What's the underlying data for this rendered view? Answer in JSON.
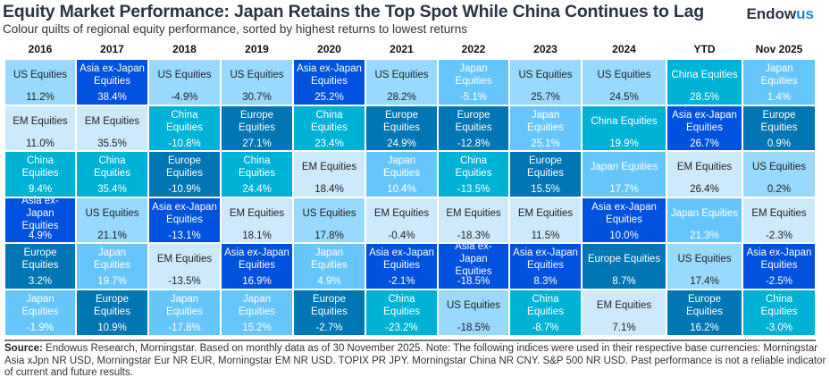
{
  "header": {
    "title": "Equity Market Performance: Japan Retains the Top Spot While China Continues to Lag",
    "subtitle": "Colour quilts of regional equity performance, sorted by highest returns to lowest returns",
    "logo_text": "Endowus"
  },
  "colors": {
    "US Equities": {
      "bg": "#99d9fd",
      "fg": "#222222"
    },
    "EM Equities": {
      "bg": "#cdeafd",
      "fg": "#222222"
    },
    "Japan Equities": {
      "bg": "#66c6fb",
      "fg": "#ffffff"
    },
    "China Equities": {
      "bg": "#00b3d6",
      "fg": "#ffffff"
    },
    "Europe Equities": {
      "bg": "#0076b4",
      "fg": "#ffffff"
    },
    "Asia ex-Japan Equities": {
      "bg": "#0051dd",
      "fg": "#ffffff"
    }
  },
  "chart_data": {
    "type": "table",
    "title": "Equity Market Performance: Japan Retains the Top Spot While China Continues to Lag",
    "subtitle": "Colour quilts of regional equity performance, sorted by highest returns to lowest returns",
    "columns": [
      {
        "label": "2016",
        "cells": [
          {
            "asset": "US Equities",
            "value": "11.2%"
          },
          {
            "asset": "EM Equities",
            "value": "11.0%"
          },
          {
            "asset": "China Equities",
            "value": "9.4%"
          },
          {
            "asset": "Asia ex-Japan Equities",
            "value": "4.9%"
          },
          {
            "asset": "Europe Equities",
            "value": "3.2%"
          },
          {
            "asset": "Japan Equities",
            "value": "-1.9%"
          }
        ]
      },
      {
        "label": "2017",
        "cells": [
          {
            "asset": "Asia ex-Japan Equities",
            "value": "38.4%"
          },
          {
            "asset": "EM Equities",
            "value": "35.5%"
          },
          {
            "asset": "China Equities",
            "value": "35.4%"
          },
          {
            "asset": "US Equities",
            "value": "21.1%"
          },
          {
            "asset": "Japan Equities",
            "value": "19.7%"
          },
          {
            "asset": "Europe Equities",
            "value": "10.9%"
          }
        ]
      },
      {
        "label": "2018",
        "cells": [
          {
            "asset": "US Equities",
            "value": "-4.9%"
          },
          {
            "asset": "China Equities",
            "value": "-10.8%"
          },
          {
            "asset": "Europe Equities",
            "value": "-10.9%"
          },
          {
            "asset": "Asia ex-Japan Equities",
            "value": "-13.1%"
          },
          {
            "asset": "EM Equities",
            "value": "-13.5%"
          },
          {
            "asset": "Japan Equities",
            "value": "-17.8%"
          }
        ]
      },
      {
        "label": "2019",
        "cells": [
          {
            "asset": "US Equities",
            "value": "30.7%"
          },
          {
            "asset": "Europe Equities",
            "value": "27.1%"
          },
          {
            "asset": "China Equities",
            "value": "24.4%"
          },
          {
            "asset": "EM Equities",
            "value": "18.1%"
          },
          {
            "asset": "Asia ex-Japan Equities",
            "value": "16.9%"
          },
          {
            "asset": "Japan Equities",
            "value": "15.2%"
          }
        ]
      },
      {
        "label": "2020",
        "cells": [
          {
            "asset": "Asia ex-Japan Equities",
            "value": "25.2%"
          },
          {
            "asset": "China Equities",
            "value": "23.4%"
          },
          {
            "asset": "EM Equities",
            "value": "18.4%"
          },
          {
            "asset": "US Equities",
            "value": "17.8%"
          },
          {
            "asset": "Japan Equities",
            "value": "4.9%"
          },
          {
            "asset": "Europe Equities",
            "value": "-2.7%"
          }
        ]
      },
      {
        "label": "2021",
        "cells": [
          {
            "asset": "US Equities",
            "value": "28.2%"
          },
          {
            "asset": "Europe Equities",
            "value": "24.9%"
          },
          {
            "asset": "Japan Equities",
            "value": "10.4%"
          },
          {
            "asset": "EM Equities",
            "value": "-0.4%"
          },
          {
            "asset": "Asia ex-Japan Equities",
            "value": "-2.1%"
          },
          {
            "asset": "China Equities",
            "value": "-23.2%"
          }
        ]
      },
      {
        "label": "2022",
        "cells": [
          {
            "asset": "Japan Equities",
            "value": "-5.1%"
          },
          {
            "asset": "Europe Equities",
            "value": "-12.8%"
          },
          {
            "asset": "China Equities",
            "value": "-13.5%"
          },
          {
            "asset": "EM Equities",
            "value": "-18.3%"
          },
          {
            "asset": "Asia ex-Japan Equities",
            "value": "-18.5%"
          },
          {
            "asset": "US Equities",
            "value": "-18.5%"
          }
        ]
      },
      {
        "label": "2023",
        "cells": [
          {
            "asset": "US Equities",
            "value": "25.7%"
          },
          {
            "asset": "Japan Equities",
            "value": "25.1%"
          },
          {
            "asset": "Europe Equities",
            "value": "15.5%"
          },
          {
            "asset": "EM Equities",
            "value": "11.5%"
          },
          {
            "asset": "Asia ex-Japan Equities",
            "value": "8.3%"
          },
          {
            "asset": "China Equities",
            "value": "-8.7%"
          }
        ]
      },
      {
        "label": "2024",
        "cells": [
          {
            "asset": "US Equities",
            "value": "24.5%"
          },
          {
            "asset": "China Equities",
            "value": "19.9%"
          },
          {
            "asset": "Japan Equities",
            "value": "17.7%"
          },
          {
            "asset": "Asia ex-Japan Equities",
            "value": "10.0%"
          },
          {
            "asset": "Europe Equities",
            "value": "8.7%"
          },
          {
            "asset": "EM Equities",
            "value": "7.1%"
          }
        ]
      },
      {
        "label": "YTD",
        "cells": [
          {
            "asset": "China Equities",
            "value": "28.5%"
          },
          {
            "asset": "Asia ex-Japan Equities",
            "value": "26.7%"
          },
          {
            "asset": "EM Equities",
            "value": "26.4%"
          },
          {
            "asset": "Japan Equities",
            "value": "21.3%"
          },
          {
            "asset": "US Equities",
            "value": "17.4%"
          },
          {
            "asset": "Europe Equities",
            "value": "16.2%"
          }
        ]
      },
      {
        "label": "Nov 2025",
        "cells": [
          {
            "asset": "Japan Equities",
            "value": "1.4%"
          },
          {
            "asset": "Europe Equities",
            "value": "0.9%"
          },
          {
            "asset": "US Equities",
            "value": "0.2%"
          },
          {
            "asset": "EM Equities",
            "value": "-2.3%"
          },
          {
            "asset": "Asia ex-Japan Equities",
            "value": "-2.5%"
          },
          {
            "asset": "China Equities",
            "value": "-3.0%"
          }
        ]
      }
    ]
  },
  "footer": {
    "source_label": "Source:",
    "source_text": " Endowus Research, Morningstar. Based on monthly data as of 30 November 2025. Note: The following indices were used in their respective base currencies: Morningstar Asia xJpn NR USD, Morningstar Eur NR EUR, Morningstar EM NR USD. TOPIX PR JPY. Morningstar China NR CNY. S&P 500 NR USD. Past performance is not a reliable indicator of current and future results."
  }
}
